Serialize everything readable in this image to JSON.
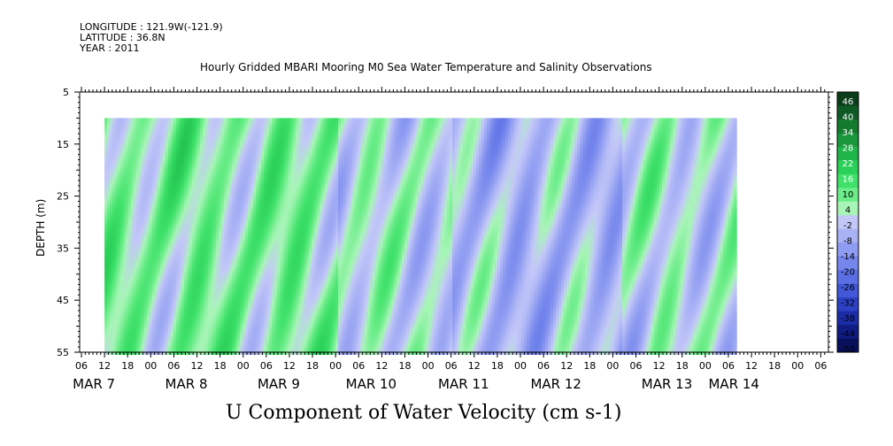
{
  "header": {
    "longitude": "LONGITUDE : 121.9W(-121.9)",
    "latitude": "LATITUDE : 36.8N",
    "year": "YEAR : 2011"
  },
  "chart_data": {
    "type": "heatmap",
    "title": "Hourly Gridded MBARI Mooring M0 Sea Water Temperature and Salinity Observations",
    "xlabel": "U Component of Water Velocity (cm s-1)",
    "ylabel": "DEPTH (m)",
    "ylim": [
      55,
      5
    ],
    "y_ticks": [
      "5",
      "15",
      "25",
      "35",
      "45",
      "55"
    ],
    "x_hour_ticks": [
      "06",
      "12",
      "18",
      "00",
      "06",
      "12",
      "18",
      "00",
      "06",
      "12",
      "18",
      "00",
      "06",
      "12",
      "18",
      "00",
      "06",
      "12",
      "18",
      "00",
      "06",
      "12",
      "18",
      "00",
      "06",
      "12",
      "18",
      "00",
      "06",
      "12",
      "18",
      "00",
      "06"
    ],
    "x_day_labels": [
      "MAR  7",
      "MAR  8",
      "MAR  9",
      "MAR 10",
      "MAR 11",
      "MAR 12",
      "MAR 13",
      "MAR 14"
    ],
    "colorbar_labels": [
      "46",
      "40",
      "34",
      "28",
      "22",
      "16",
      "10",
      "4",
      "-2",
      "-8",
      "-14",
      "-20",
      "-26",
      "-32",
      "-38",
      "-44",
      "-50"
    ],
    "colorbar_colors": [
      "#0b3d1a",
      "#0f5a24",
      "#137a2e",
      "#18963a",
      "#1fb548",
      "#2bd059",
      "#3fe16a",
      "#6ded8a",
      "#a8f5b7",
      "#c3c8f8",
      "#a9b2f5",
      "#8f9cf1",
      "#7586ec",
      "#5b6fe4",
      "#4258d8",
      "#2b40c4",
      "#1b2ca6",
      "#101c82",
      "#08105c"
    ],
    "data_start": "MAR 7 12:00",
    "data_end": "MAR 14 08:00",
    "data_depth_top": 10,
    "data_depth_bottom": 55,
    "pattern_columns": [
      {
        "day": "MAR 7",
        "phase": "green-blue alternation"
      },
      {
        "day": "MAR 8",
        "phase": "strong positive"
      },
      {
        "day": "MAR 9",
        "phase": "strong positive"
      },
      {
        "day": "MAR 10",
        "phase": "mixed"
      },
      {
        "day": "MAR 11",
        "phase": "mostly negative"
      },
      {
        "day": "MAR 12",
        "phase": "mixed"
      },
      {
        "day": "MAR 13",
        "phase": "mixed"
      }
    ]
  }
}
